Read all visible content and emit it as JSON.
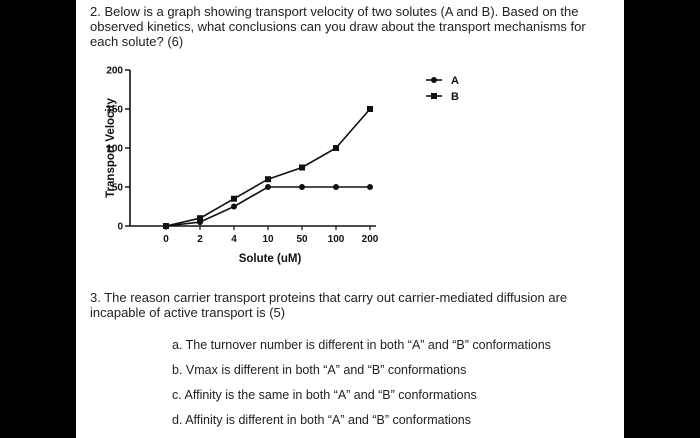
{
  "question2": {
    "text": "2. Below is a graph showing transport velocity of two solutes (A and B). Based on the observed kinetics, what conclusions can you draw about the transport mechanisms for each solute? (6)"
  },
  "chart_data": {
    "type": "line",
    "title": "",
    "xlabel": "Solute (uM)",
    "ylabel": "Transport Velocity",
    "categories": [
      "0",
      "2",
      "4",
      "10",
      "50",
      "100",
      "200"
    ],
    "y_ticks": [
      "0",
      "50",
      "100",
      "150",
      "200"
    ],
    "ylim": [
      0,
      200
    ],
    "grid": false,
    "legend_position": "top-right",
    "series": [
      {
        "name": "A",
        "marker": "circle",
        "color": "#111111",
        "values": [
          0,
          5,
          25,
          50,
          50,
          50,
          50
        ]
      },
      {
        "name": "B",
        "marker": "square",
        "color": "#111111",
        "values": [
          0,
          10,
          35,
          60,
          75,
          100,
          150
        ]
      }
    ]
  },
  "question3": {
    "text": "3. The reason carrier transport proteins that carry out carrier-mediated diffusion are incapable of active transport is (5)",
    "options": [
      "a. The turnover number is different in both “A” and “B” conformations",
      "b. Vmax is different in both “A” and “B” conformations",
      "c. Affinity is the same in both “A” and “B” conformations",
      "d. Affinity is different in both “A” and “B” conformations"
    ]
  }
}
